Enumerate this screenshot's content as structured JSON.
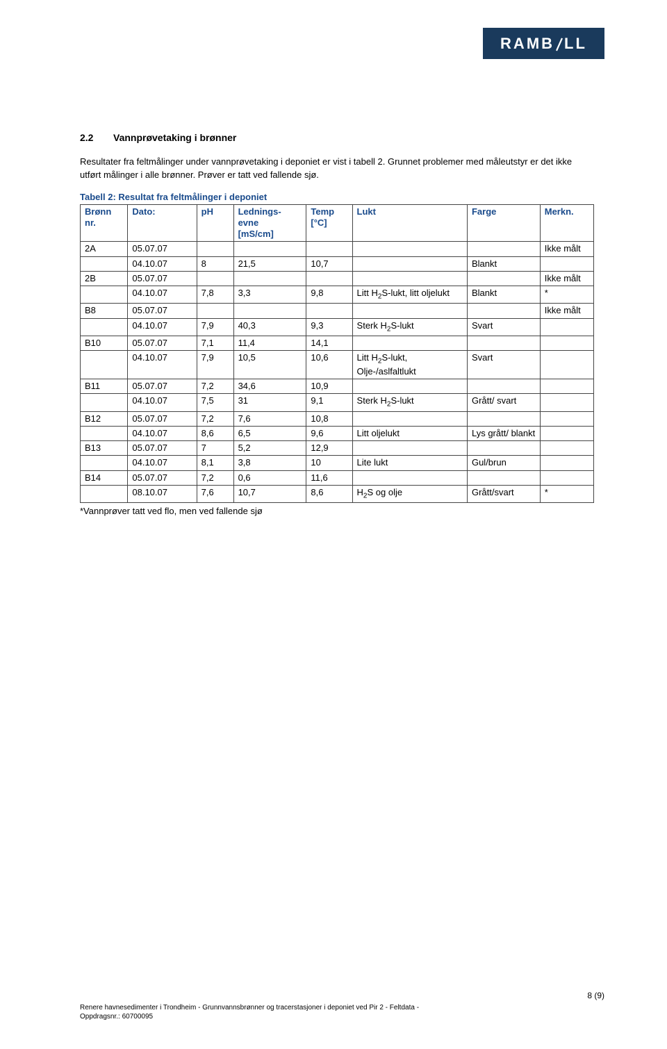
{
  "logo": {
    "text": "RAMBOLL"
  },
  "section": {
    "number": "2.2",
    "title": "Vannprøvetaking i brønner"
  },
  "paragraphs": {
    "p1": "Resultater fra feltmålinger under vannprøvetaking i deponiet er vist i tabell 2. Grunnet problemer med måleutstyr er det ikke utført målinger i alle brønner. Prøver er tatt ved fallende sjø."
  },
  "table": {
    "caption": "Tabell 2: Resultat fra feltmålinger i deponiet",
    "columns": [
      "Brønn nr.",
      "Dato:",
      "pH",
      "Lednings-evne [mS/cm]",
      "Temp [°C]",
      "Lukt",
      "Farge",
      "Merkn."
    ],
    "rows": [
      [
        "2A",
        "05.07.07",
        "",
        "",
        "",
        "",
        "",
        "Ikke målt"
      ],
      [
        "",
        "04.10.07",
        "8",
        "21,5",
        "10,7",
        "",
        "Blankt",
        ""
      ],
      [
        "2B",
        "05.07.07",
        "",
        "",
        "",
        "",
        "",
        "Ikke målt"
      ],
      [
        "",
        "04.10.07",
        "7,8",
        "3,3",
        "9,8",
        "Litt H2S-lukt, litt oljelukt",
        "Blankt",
        "*"
      ],
      [
        "B8",
        "05.07.07",
        "",
        "",
        "",
        "",
        "",
        "Ikke målt"
      ],
      [
        "",
        "04.10.07",
        "7,9",
        "40,3",
        "9,3",
        "Sterk H2S-lukt",
        "Svart",
        ""
      ],
      [
        "B10",
        "05.07.07",
        "7,1",
        "11,4",
        "14,1",
        "",
        "",
        ""
      ],
      [
        "",
        "04.10.07",
        "7,9",
        "10,5",
        "10,6",
        "Litt H2S-lukt, Olje-/aslfaltlukt",
        "Svart",
        ""
      ],
      [
        "B11",
        "05.07.07",
        "7,2",
        "34,6",
        "10,9",
        "",
        "",
        ""
      ],
      [
        "",
        "04.10.07",
        "7,5",
        "31",
        "9,1",
        "Sterk H2S-lukt",
        "Grått/ svart",
        ""
      ],
      [
        "B12",
        "05.07.07",
        "7,2",
        "7,6",
        "10,8",
        "",
        "",
        ""
      ],
      [
        "",
        "04.10.07",
        "8,6",
        "6,5",
        "9,6",
        "Litt oljelukt",
        "Lys grått/ blankt",
        ""
      ],
      [
        "B13",
        "05.07.07",
        "7",
        "5,2",
        "12,9",
        "",
        "",
        ""
      ],
      [
        "",
        "04.10.07",
        "8,1",
        "3,8",
        "10",
        "Lite lukt",
        "Gul/brun",
        ""
      ],
      [
        "B14",
        "05.07.07",
        "7,2",
        "0,6",
        "11,6",
        "",
        "",
        ""
      ],
      [
        "",
        "08.10.07",
        "7,6",
        "10,7",
        "8,6",
        "H2S og olje",
        "Grått/svart",
        "*"
      ]
    ],
    "footnote": "*Vannprøver tatt ved flo, men ved fallende sjø"
  },
  "footer": {
    "line1": "Renere havnesedimenter i Trondheim - Grunnvannsbrønner og tracerstasjoner i deponiet ved Pir 2 - Feltdata -",
    "line2": "Oppdragsnr.: 60700095",
    "page": "8 (9)"
  }
}
